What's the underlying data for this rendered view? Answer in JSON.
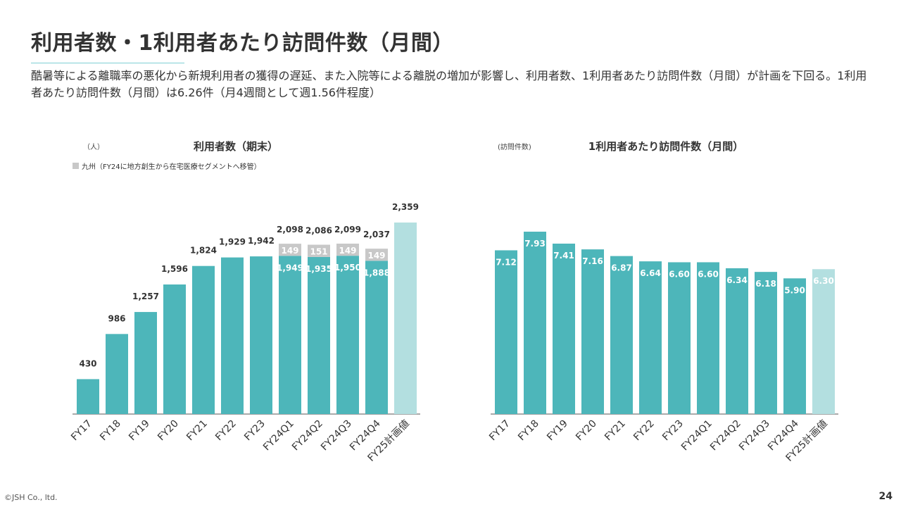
{
  "page": {
    "title": "利用者数・1利用者あたり訪問件数（月間）",
    "description": "酷暑等による離職率の悪化から新規利用者の獲得の遅延、また入院等による離脱の増加が影響し、利用者数、1利用者あたり訪問件数（月間）が計画を下回る。1利用者あたり訪問件数（月間）は6.26件（月4週間として週1.56件程度）",
    "copyright": "©JSH Co., ltd.",
    "page_number": "24"
  },
  "colors": {
    "primary_bar": "#4db6ba",
    "plan_bar": "#b3dfe0",
    "kyushu_bar": "#c8c8c8",
    "axis": "#555555"
  },
  "chart_data": [
    {
      "type": "bar",
      "title": "利用者数（期末）",
      "unit_label": "（人）",
      "legend": [
        {
          "name": "九州（FY24に地方創生から在宅医療セグメントへ移管）",
          "color": "#c8c8c8"
        }
      ],
      "categories": [
        "FY17",
        "FY18",
        "FY19",
        "FY20",
        "FY21",
        "FY22",
        "FY23",
        "FY24Q1",
        "FY24Q2",
        "FY24Q3",
        "FY24Q4",
        "FY25計画値"
      ],
      "series": [
        {
          "values": [
            430,
            986,
            1257,
            1596,
            1824,
            1929,
            1942,
            1949,
            1935,
            1950,
            1888,
            2359
          ]
        },
        {
          "name": "九州（FY24に地方創生から在宅医療セグメントへ移管）",
          "values": [
            null,
            null,
            null,
            null,
            null,
            null,
            null,
            149,
            151,
            149,
            149,
            null
          ]
        }
      ],
      "totals": [
        null,
        null,
        null,
        null,
        null,
        null,
        null,
        2098,
        2086,
        2099,
        2037,
        null
      ],
      "labels": {
        "main": [
          "430",
          "986",
          "1,257",
          "1,596",
          "1,824",
          "1,929",
          "1,942",
          "1,949",
          "1,935",
          "1,950",
          "1,888",
          "2,359"
        ],
        "kyushu": [
          "",
          "",
          "",
          "",
          "",
          "",
          "",
          "149",
          "151",
          "149",
          "149",
          ""
        ],
        "totals": [
          "",
          "",
          "",
          "",
          "",
          "",
          "",
          "2,098",
          "2,086",
          "2,099",
          "2,037",
          ""
        ]
      },
      "highlight_last": true,
      "ylim": [
        0,
        2550
      ]
    },
    {
      "type": "bar",
      "title": "1利用者あたり訪問件数（月間）",
      "unit_label": "(訪問件数)",
      "categories": [
        "FY17",
        "FY18",
        "FY19",
        "FY20",
        "FY21",
        "FY22",
        "FY23",
        "FY24Q1",
        "FY24Q2",
        "FY24Q3",
        "FY24Q4",
        "FY25計画値"
      ],
      "series": [
        {
          "values": [
            7.12,
            7.93,
            7.41,
            7.16,
            6.87,
            6.64,
            6.6,
            6.6,
            6.34,
            6.18,
            5.9,
            6.3
          ]
        }
      ],
      "labels": {
        "main": [
          "7.12",
          "7.93",
          "7.41",
          "7.16",
          "6.87",
          "6.64",
          "6.60",
          "6.60",
          "6.34",
          "6.18",
          "5.90",
          "6.30"
        ]
      },
      "highlight_last": true,
      "ylim": [
        0,
        7.93
      ]
    }
  ]
}
